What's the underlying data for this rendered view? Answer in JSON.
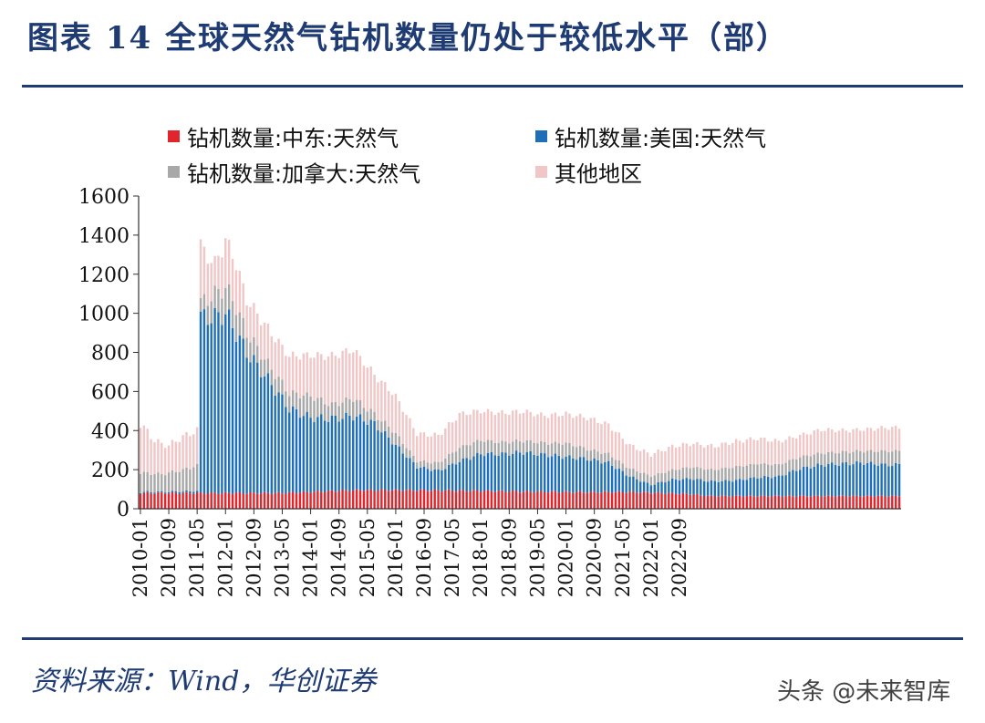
{
  "header": {
    "title": "图表 14 全球天然气钻机数量仍处于较低水平（部）"
  },
  "footer": {
    "source": "资料来源：Wind，华创证券",
    "watermark": "头条 @未来智库"
  },
  "chart_data": {
    "type": "bar",
    "stacked": true,
    "ylim": [
      0,
      1600
    ],
    "yticks": [
      0,
      200,
      400,
      600,
      800,
      1000,
      1200,
      1400,
      1600
    ],
    "xtick_labels": [
      "2010-01",
      "2010-09",
      "2011-05",
      "2012-01",
      "2012-09",
      "2013-05",
      "2014-01",
      "2014-09",
      "2015-05",
      "2016-01",
      "2016-09",
      "2017-05",
      "2018-01",
      "2018-09",
      "2019-05",
      "2020-01",
      "2020-09",
      "2021-05",
      "2022-01",
      "2022-09"
    ],
    "legend": {
      "placement": "top",
      "columns": 2
    },
    "colors": {
      "middle_east": "#e0262c",
      "usa": "#1f6fb8",
      "canada": "#a8a8a8",
      "other": "#f1c6c6"
    },
    "series": [
      {
        "key": "middle_east",
        "name": "钻机数量:中东:天然气",
        "knots": [
          [
            0,
            80
          ],
          [
            16,
            80
          ],
          [
            40,
            80
          ],
          [
            60,
            95
          ],
          [
            80,
            95
          ],
          [
            100,
            90
          ],
          [
            120,
            85
          ],
          [
            140,
            85
          ],
          [
            155,
            75
          ],
          [
            160,
            65
          ],
          [
            180,
            65
          ],
          [
            200,
            65
          ],
          [
            214,
            65
          ]
        ],
        "values": []
      },
      {
        "key": "usa",
        "name": "钻机数量:美国:天然气",
        "knots": [
          [
            0,
            5
          ],
          [
            16,
            10
          ],
          [
            17,
            900
          ],
          [
            21,
            900
          ],
          [
            24,
            920
          ],
          [
            30,
            720
          ],
          [
            36,
            580
          ],
          [
            42,
            430
          ],
          [
            48,
            380
          ],
          [
            54,
            370
          ],
          [
            60,
            380
          ],
          [
            66,
            340
          ],
          [
            72,
            230
          ],
          [
            78,
            120
          ],
          [
            84,
            100
          ],
          [
            90,
            150
          ],
          [
            96,
            190
          ],
          [
            102,
            190
          ],
          [
            108,
            200
          ],
          [
            114,
            190
          ],
          [
            120,
            180
          ],
          [
            126,
            170
          ],
          [
            132,
            150
          ],
          [
            138,
            80
          ],
          [
            144,
            40
          ],
          [
            150,
            70
          ],
          [
            156,
            80
          ],
          [
            162,
            75
          ],
          [
            168,
            80
          ],
          [
            174,
            95
          ],
          [
            180,
            100
          ],
          [
            186,
            140
          ],
          [
            192,
            160
          ],
          [
            198,
            165
          ],
          [
            204,
            170
          ],
          [
            210,
            160
          ],
          [
            214,
            160
          ]
        ],
        "values": []
      },
      {
        "key": "canada",
        "name": "钻机数量:加拿大:天然气",
        "knots": [
          [
            0,
            100
          ],
          [
            6,
            90
          ],
          [
            12,
            110
          ],
          [
            16,
            130
          ],
          [
            17,
            70
          ],
          [
            21,
            120
          ],
          [
            26,
            140
          ],
          [
            30,
            100
          ],
          [
            36,
            80
          ],
          [
            42,
            80
          ],
          [
            48,
            110
          ],
          [
            54,
            70
          ],
          [
            60,
            90
          ],
          [
            66,
            50
          ],
          [
            72,
            60
          ],
          [
            78,
            30
          ],
          [
            84,
            40
          ],
          [
            90,
            70
          ],
          [
            96,
            70
          ],
          [
            102,
            60
          ],
          [
            108,
            60
          ],
          [
            114,
            60
          ],
          [
            120,
            70
          ],
          [
            126,
            50
          ],
          [
            132,
            45
          ],
          [
            138,
            40
          ],
          [
            144,
            45
          ],
          [
            150,
            50
          ],
          [
            156,
            60
          ],
          [
            162,
            60
          ],
          [
            168,
            70
          ],
          [
            174,
            70
          ],
          [
            180,
            60
          ],
          [
            186,
            60
          ],
          [
            192,
            60
          ],
          [
            198,
            60
          ],
          [
            204,
            60
          ],
          [
            210,
            70
          ],
          [
            214,
            70
          ]
        ],
        "values": []
      },
      {
        "key": "other",
        "name": "其他地区",
        "knots": [
          [
            0,
            250
          ],
          [
            4,
            170
          ],
          [
            8,
            140
          ],
          [
            12,
            170
          ],
          [
            16,
            180
          ],
          [
            17,
            290
          ],
          [
            21,
            150
          ],
          [
            24,
            240
          ],
          [
            27,
            220
          ],
          [
            30,
            170
          ],
          [
            36,
            180
          ],
          [
            42,
            190
          ],
          [
            48,
            210
          ],
          [
            54,
            250
          ],
          [
            60,
            250
          ],
          [
            66,
            200
          ],
          [
            72,
            190
          ],
          [
            78,
            140
          ],
          [
            84,
            140
          ],
          [
            90,
            170
          ],
          [
            96,
            150
          ],
          [
            102,
            150
          ],
          [
            108,
            150
          ],
          [
            114,
            140
          ],
          [
            120,
            150
          ],
          [
            126,
            160
          ],
          [
            132,
            150
          ],
          [
            138,
            120
          ],
          [
            144,
            110
          ],
          [
            150,
            120
          ],
          [
            156,
            120
          ],
          [
            162,
            120
          ],
          [
            168,
            130
          ],
          [
            174,
            130
          ],
          [
            180,
            120
          ],
          [
            186,
            110
          ],
          [
            192,
            120
          ],
          [
            198,
            110
          ],
          [
            204,
            110
          ],
          [
            210,
            120
          ],
          [
            214,
            120
          ]
        ],
        "values": []
      }
    ]
  }
}
